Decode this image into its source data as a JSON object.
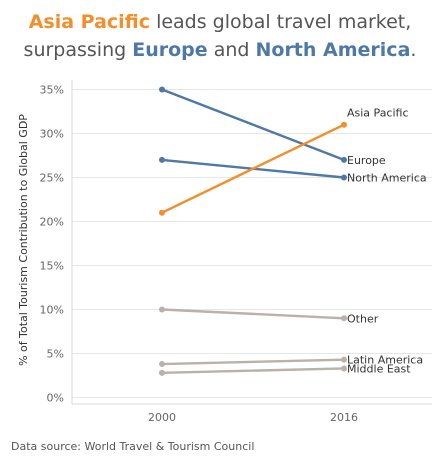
{
  "title": {
    "line1_highlight": "Asia Pacific",
    "line1_rest": " leads global  travel market,",
    "line2_prefix": "surpassing ",
    "line2_highlight1": "Europe",
    "line2_mid": " and ",
    "line2_highlight2": "North America",
    "line2_suffix": "."
  },
  "chart_data": {
    "type": "line",
    "title": "Asia Pacific leads global  travel market, surpassing Europe and North America.",
    "xlabel": "",
    "ylabel": "% of Total Tourism Contribution to Global GDP",
    "categories": [
      "2000",
      "2016"
    ],
    "ylim": [
      0,
      36
    ],
    "yticks": [
      0,
      5,
      10,
      15,
      20,
      25,
      30,
      35
    ],
    "ytick_labels": [
      "0%",
      "5%",
      "10%",
      "15%",
      "20%",
      "25%",
      "30%",
      "35%"
    ],
    "grid": "horizontal",
    "series": [
      {
        "name": "Asia Pacific",
        "values": [
          21,
          31
        ],
        "color": "#f28e2b"
      },
      {
        "name": "Europe",
        "values": [
          35,
          27
        ],
        "color": "#4e79a7"
      },
      {
        "name": "North America",
        "values": [
          27,
          25
        ],
        "color": "#4e79a7"
      },
      {
        "name": "Other",
        "values": [
          10,
          9
        ],
        "color": "#bab0ac"
      },
      {
        "name": "Latin America",
        "values": [
          3.8,
          4.3
        ],
        "color": "#bab0ac"
      },
      {
        "name": "Middle East",
        "values": [
          2.8,
          3.3
        ],
        "color": "#bab0ac"
      }
    ]
  },
  "source": "Data source: World Travel & Tourism Council"
}
